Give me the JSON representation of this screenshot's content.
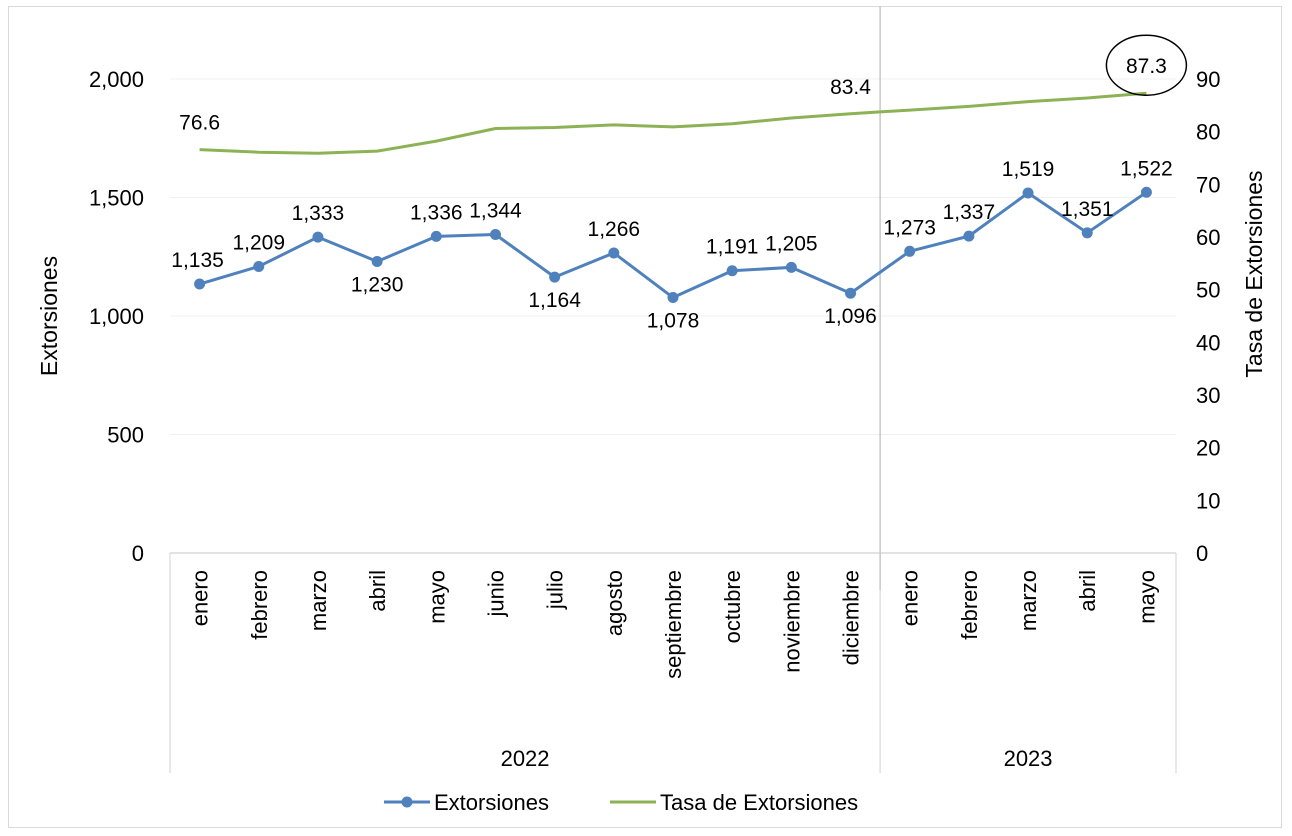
{
  "chart_data": {
    "type": "line",
    "categories": [
      "enero",
      "febrero",
      "marzo",
      "abril",
      "mayo",
      "junio",
      "julio",
      "agosto",
      "septiembre",
      "octubre",
      "noviembre",
      "diciembre",
      "enero",
      "febrero",
      "marzo",
      "abril",
      "mayo"
    ],
    "groups": [
      {
        "label": "2022",
        "count": 12
      },
      {
        "label": "2023",
        "count": 5
      }
    ],
    "series": [
      {
        "name": "Extorsiones",
        "axis": "left",
        "color": "#4f81bd",
        "marker": "circle",
        "values": [
          1135,
          1209,
          1333,
          1230,
          1336,
          1344,
          1164,
          1266,
          1078,
          1191,
          1205,
          1096,
          1273,
          1337,
          1519,
          1351,
          1522
        ],
        "labels": [
          "1,135",
          "1,209",
          "1,333",
          "1,230",
          "1,336",
          "1,344",
          "1,164",
          "1,266",
          "1,078",
          "1,191",
          "1,205",
          "1,096",
          "1,273",
          "1,337",
          "1,519",
          "1,351",
          "1,522"
        ]
      },
      {
        "name": "Tasa de Extorsiones",
        "axis": "right",
        "color": "#8db255",
        "values": [
          76.6,
          76.1,
          75.9,
          76.3,
          78.2,
          80.6,
          80.8,
          81.3,
          80.9,
          81.5,
          82.6,
          83.4,
          84.1,
          84.8,
          85.7,
          86.4,
          87.3
        ],
        "point_labels": [
          {
            "index": 0,
            "text": "76.6"
          },
          {
            "index": 11,
            "text": "83.4"
          },
          {
            "index": 16,
            "text": "87.3",
            "circled": true
          }
        ]
      }
    ],
    "y_left": {
      "label": "Extorsiones",
      "min": 0,
      "max": 2000,
      "ticks": [
        "0",
        "500",
        "1,000",
        "1,500",
        "2,000"
      ],
      "tick_values": [
        0,
        500,
        1000,
        1500,
        2000
      ]
    },
    "y_right": {
      "label": "Tasa de Extorsiones",
      "min": 0,
      "max": 90,
      "ticks": [
        "0",
        "10",
        "20",
        "30",
        "40",
        "50",
        "60",
        "70",
        "80",
        "90"
      ],
      "tick_values": [
        0,
        10,
        20,
        30,
        40,
        50,
        60,
        70,
        80,
        90
      ]
    },
    "grid": true,
    "legend_position": "bottom"
  }
}
